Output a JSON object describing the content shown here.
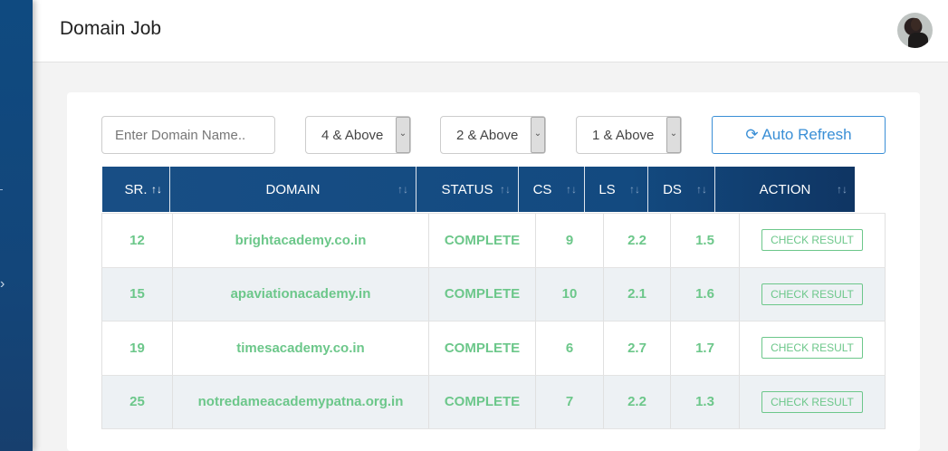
{
  "header": {
    "title": "Domain Job"
  },
  "filters": {
    "search_placeholder": "Enter Domain Name..",
    "cs_filter": "4 & Above",
    "ls_filter": "2 & Above",
    "ds_filter": "1 & Above",
    "refresh_label": "Auto Refresh"
  },
  "table": {
    "columns": [
      "SR.",
      "DOMAIN",
      "STATUS",
      "CS",
      "LS",
      "DS",
      "ACTION"
    ],
    "sort_icon": "↑↓",
    "rows": [
      {
        "sr": "12",
        "domain": "brightacademy.co.in",
        "status": "COMPLETE",
        "cs": "9",
        "ls": "2.2",
        "ds": "1.5",
        "action": "CHECK RESULT"
      },
      {
        "sr": "15",
        "domain": "apaviationacademy.in",
        "status": "COMPLETE",
        "cs": "10",
        "ls": "2.1",
        "ds": "1.6",
        "action": "CHECK RESULT"
      },
      {
        "sr": "19",
        "domain": "timesacademy.co.in",
        "status": "COMPLETE",
        "cs": "6",
        "ls": "2.7",
        "ds": "1.7",
        "action": "CHECK RESULT"
      },
      {
        "sr": "25",
        "domain": "notredameacademypatna.org.in",
        "status": "COMPLETE",
        "cs": "7",
        "ls": "2.2",
        "ds": "1.3",
        "action": "CHECK RESULT"
      }
    ]
  },
  "colors": {
    "accent": "#3a8fd6",
    "header_bg": "#134a80",
    "success": "#6cc78a"
  }
}
